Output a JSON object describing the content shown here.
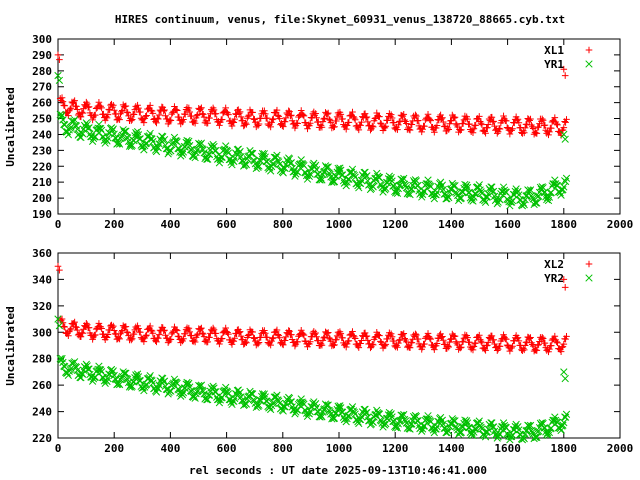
{
  "title": "HIRES continuum, venus, file:Skynet_60931_venus_138720_88665.cyb.txt",
  "xlabel": "rel seconds : UT date 2025-09-13T10:46:41.000",
  "colors": {
    "red": "#ff0000",
    "green": "#00c000",
    "axis": "#000000"
  },
  "chart_data": [
    {
      "type": "scatter",
      "ylabel": "Uncalibrated",
      "xlim": [
        0,
        2000
      ],
      "ylim": [
        190,
        300
      ],
      "xticks": [
        0,
        200,
        400,
        600,
        800,
        1000,
        1200,
        1400,
        1600,
        1800,
        2000
      ],
      "yticks": [
        190,
        200,
        210,
        220,
        230,
        240,
        250,
        260,
        270,
        280,
        290,
        300
      ],
      "legend_position": "top-right",
      "series": [
        {
          "name": "XL1",
          "marker": "+",
          "color": "#ff0000",
          "x": [
            0,
            5,
            10,
            20,
            40,
            60,
            80,
            100,
            200,
            300,
            400,
            500,
            600,
            700,
            800,
            900,
            1000,
            1100,
            1200,
            1300,
            1400,
            1500,
            1600,
            1700,
            1780,
            1800,
            1805,
            1810
          ],
          "y": [
            290,
            287,
            258,
            258,
            257,
            256,
            256,
            255,
            254,
            253,
            252,
            252,
            251,
            250,
            250,
            249,
            249,
            248,
            248,
            247,
            247,
            246,
            246,
            245,
            245,
            281,
            277,
            245
          ],
          "oscillation_amplitude": 4.5,
          "oscillation_period": 45
        },
        {
          "name": "YR1",
          "marker": "x",
          "color": "#00c000",
          "x": [
            0,
            5,
            10,
            20,
            40,
            60,
            80,
            100,
            200,
            300,
            400,
            500,
            600,
            700,
            800,
            900,
            1000,
            1100,
            1200,
            1300,
            1400,
            1500,
            1600,
            1650,
            1700,
            1750,
            1780,
            1800,
            1805,
            1810
          ],
          "y": [
            277,
            274,
            248,
            246,
            245,
            244,
            243,
            242,
            239,
            236,
            233,
            230,
            227,
            224,
            221,
            217,
            214,
            211,
            208,
            206,
            204,
            203,
            201,
            200,
            201,
            204,
            207,
            240,
            237,
            208
          ],
          "oscillation_amplitude": 4.5,
          "oscillation_period": 45
        }
      ]
    },
    {
      "type": "scatter",
      "ylabel": "Uncalibrated",
      "xlim": [
        0,
        2000
      ],
      "ylim": [
        220,
        360
      ],
      "xticks": [
        0,
        200,
        400,
        600,
        800,
        1000,
        1200,
        1400,
        1600,
        1800,
        2000
      ],
      "yticks": [
        220,
        240,
        260,
        280,
        300,
        320,
        340,
        360
      ],
      "legend_position": "top-right",
      "series": [
        {
          "name": "XL2",
          "marker": "+",
          "color": "#ff0000",
          "x": [
            0,
            5,
            10,
            20,
            40,
            60,
            80,
            100,
            200,
            300,
            400,
            500,
            600,
            700,
            800,
            900,
            1000,
            1100,
            1200,
            1300,
            1400,
            1500,
            1600,
            1700,
            1780,
            1800,
            1805,
            1810
          ],
          "y": [
            350,
            347,
            305,
            304,
            303,
            302,
            302,
            301,
            300,
            299,
            298,
            298,
            297,
            296,
            296,
            295,
            295,
            294,
            294,
            293,
            293,
            292,
            292,
            291,
            291,
            340,
            334,
            292
          ],
          "oscillation_amplitude": 5,
          "oscillation_period": 45
        },
        {
          "name": "YR2",
          "marker": "x",
          "color": "#00c000",
          "x": [
            0,
            5,
            10,
            20,
            40,
            60,
            80,
            100,
            200,
            300,
            400,
            500,
            600,
            700,
            800,
            900,
            1000,
            1100,
            1200,
            1300,
            1400,
            1500,
            1600,
            1650,
            1700,
            1750,
            1780,
            1800,
            1805,
            1810
          ],
          "y": [
            310,
            305,
            275,
            274,
            273,
            272,
            271,
            270,
            266,
            262,
            259,
            255,
            252,
            249,
            246,
            242,
            239,
            236,
            233,
            231,
            229,
            227,
            225,
            224,
            225,
            228,
            231,
            270,
            265,
            233
          ],
          "oscillation_amplitude": 5,
          "oscillation_period": 45
        }
      ]
    }
  ]
}
